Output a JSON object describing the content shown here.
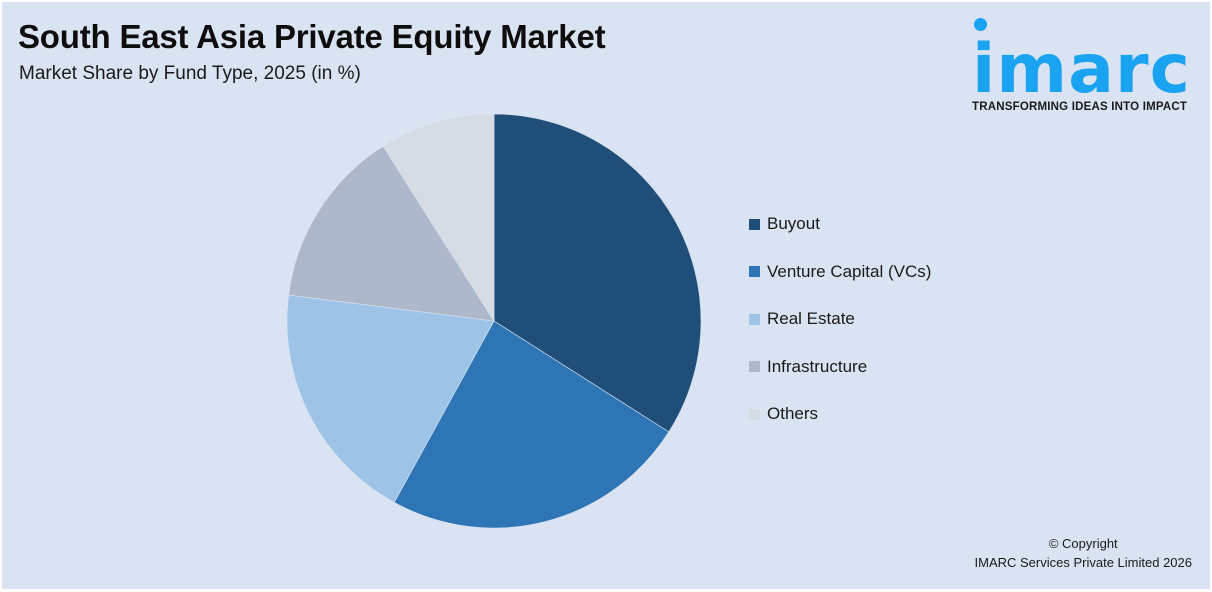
{
  "header": {
    "title": "South East Asia Private Equity Market",
    "subtitle": "Market Share by Fund Type, 2025 (in %)"
  },
  "logo": {
    "wordmark": "imarc",
    "tagline": "TRANSFORMING IDEAS INTO IMPACT",
    "color": "#1aa3f0"
  },
  "legend": {
    "items": [
      {
        "label": "Buyout",
        "color": "#1f4e79"
      },
      {
        "label": "Venture Capital (VCs)",
        "color": "#2e75b6"
      },
      {
        "label": "Real Estate",
        "color": "#9dc3e6"
      },
      {
        "label": "Infrastructure",
        "color": "#adb9ca"
      },
      {
        "label": "Others",
        "color": "#d6dce5"
      }
    ]
  },
  "footer": {
    "copyright_line1": "© Copyright",
    "copyright_line2": "IMARC Services Private Limited 2026"
  },
  "colors": {
    "background": "#dae3f1"
  },
  "chart_data": {
    "type": "pie",
    "title": "South East Asia Private Equity Market",
    "subtitle": "Market Share by Fund Type, 2025 (in %)",
    "categories": [
      "Buyout",
      "Venture Capital (VCs)",
      "Real Estate",
      "Infrastructure",
      "Others"
    ],
    "values": [
      34,
      24,
      19,
      14,
      9
    ],
    "colors": [
      "#1f4e79",
      "#2e75b6",
      "#9dc3e6",
      "#adb9ca",
      "#d6dce5"
    ],
    "start_angle_deg": 0,
    "direction": "clockwise",
    "data_labels": false,
    "legend_position": "right"
  }
}
